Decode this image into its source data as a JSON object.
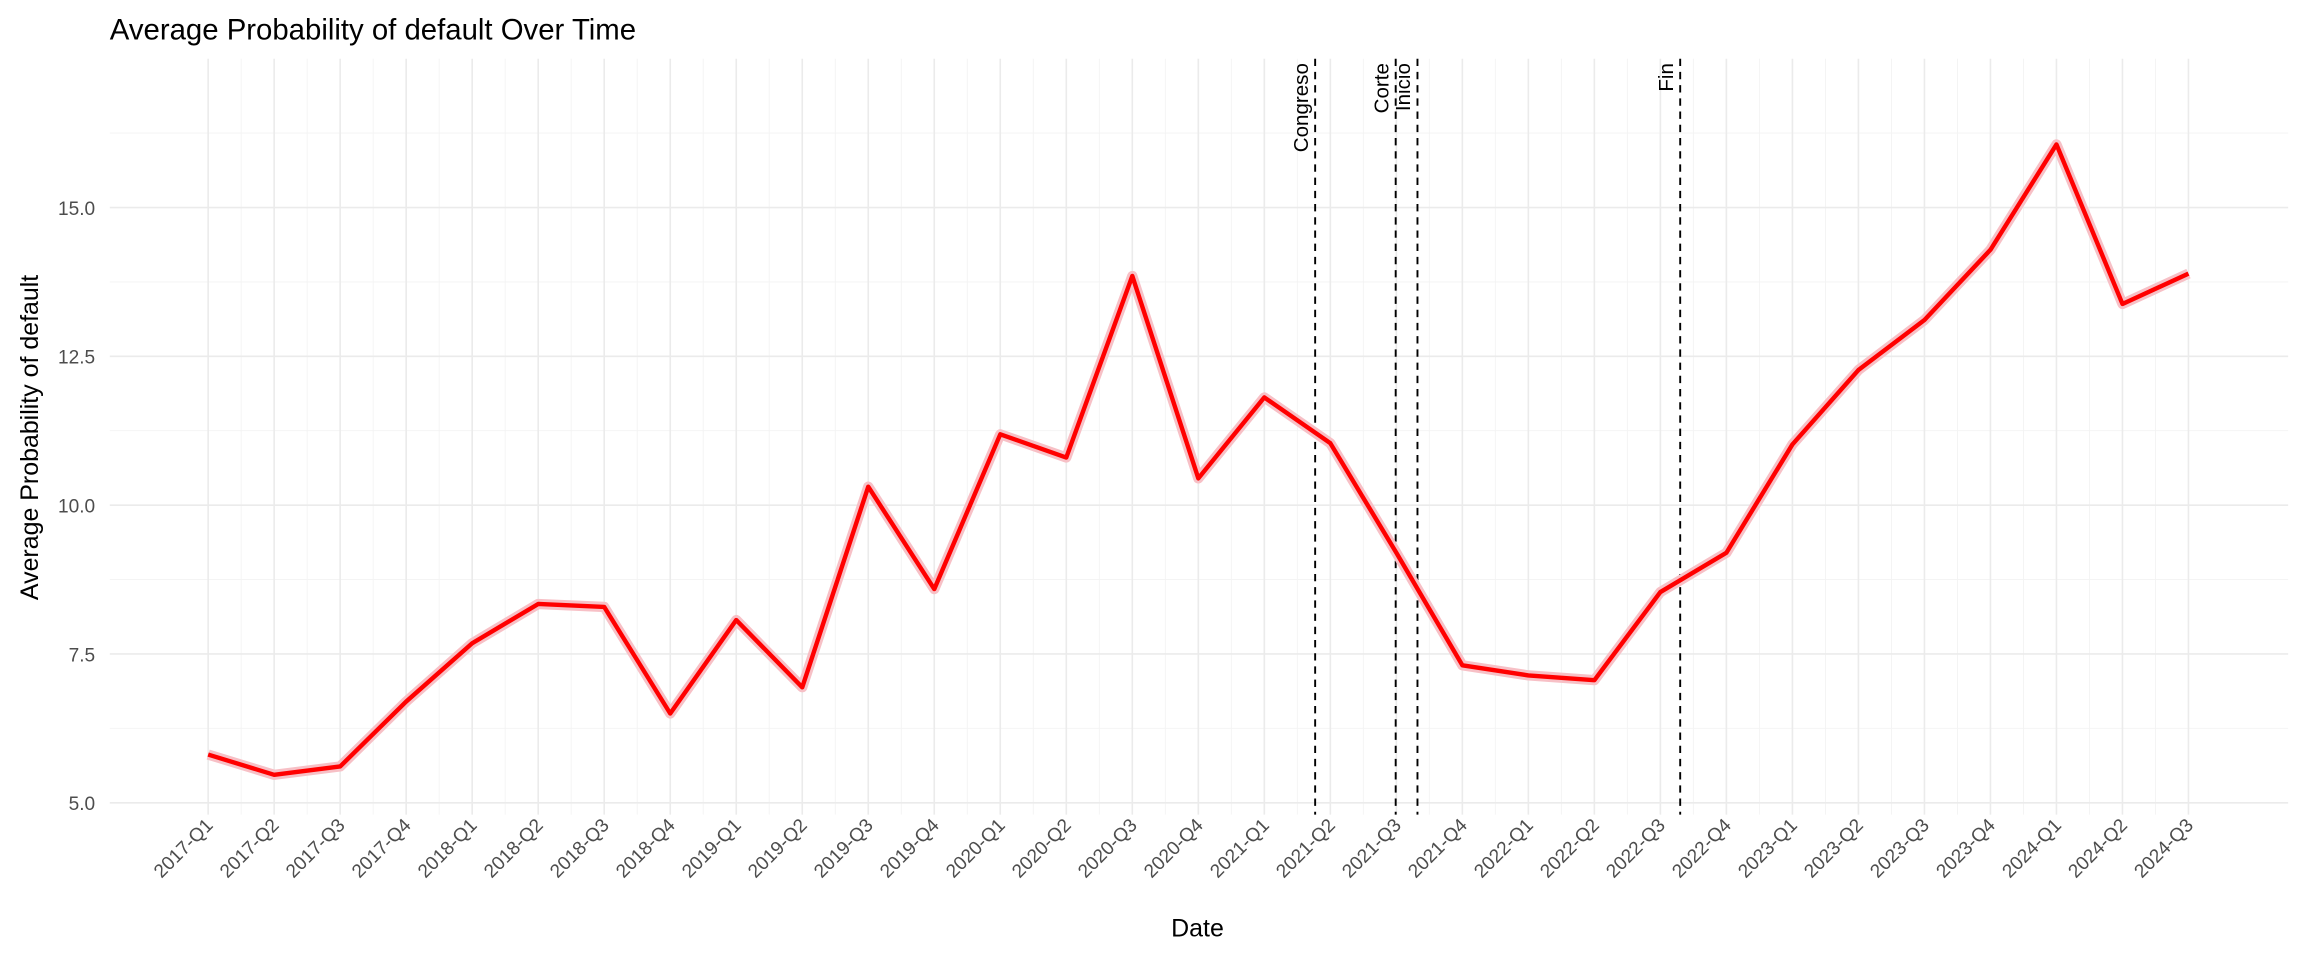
{
  "chart_data": {
    "type": "line",
    "title": "Average Probability of default Over Time",
    "x_label": "Date",
    "y_label": "Average Probability of default",
    "categories": [
      "2017-Q1",
      "2017-Q2",
      "2017-Q3",
      "2017-Q4",
      "2018-Q1",
      "2018-Q2",
      "2018-Q3",
      "2018-Q4",
      "2019-Q1",
      "2019-Q2",
      "2019-Q3",
      "2019-Q4",
      "2020-Q1",
      "2020-Q2",
      "2020-Q3",
      "2020-Q4",
      "2021-Q1",
      "2021-Q2",
      "2021-Q3",
      "2021-Q4",
      "2022-Q1",
      "2022-Q2",
      "2022-Q3",
      "2022-Q4",
      "2023-Q1",
      "2023-Q2",
      "2023-Q3",
      "2023-Q4",
      "2024-Q1",
      "2024-Q2",
      "2024-Q3"
    ],
    "series": [
      {
        "color": "#ff0000",
        "values": [
          5.81,
          5.47,
          5.61,
          6.7,
          7.68,
          8.34,
          8.29,
          6.5,
          8.07,
          6.94,
          10.31,
          8.59,
          11.19,
          10.8,
          13.85,
          10.45,
          11.81,
          11.04,
          9.2,
          7.31,
          7.14,
          7.06,
          8.54,
          9.2,
          11.02,
          12.27,
          13.11,
          14.29,
          16.06,
          13.38,
          13.89
        ]
      }
    ],
    "ylim": [
      4.8,
      17.5
    ],
    "yticks": [
      {
        "value": 5,
        "label": "5.0"
      },
      7.5,
      {
        "value": 10,
        "label": "10.0"
      },
      12.5,
      {
        "value": 15,
        "label": "15.0"
      }
    ],
    "vlines": [
      {
        "label": "Congreso",
        "x": 16.77
      },
      {
        "label": "Corte",
        "x": 17.99
      },
      {
        "label": "Inicio",
        "x": 18.32
      },
      {
        "label": "Fin",
        "x": 22.3
      }
    ],
    "grid": true
  }
}
